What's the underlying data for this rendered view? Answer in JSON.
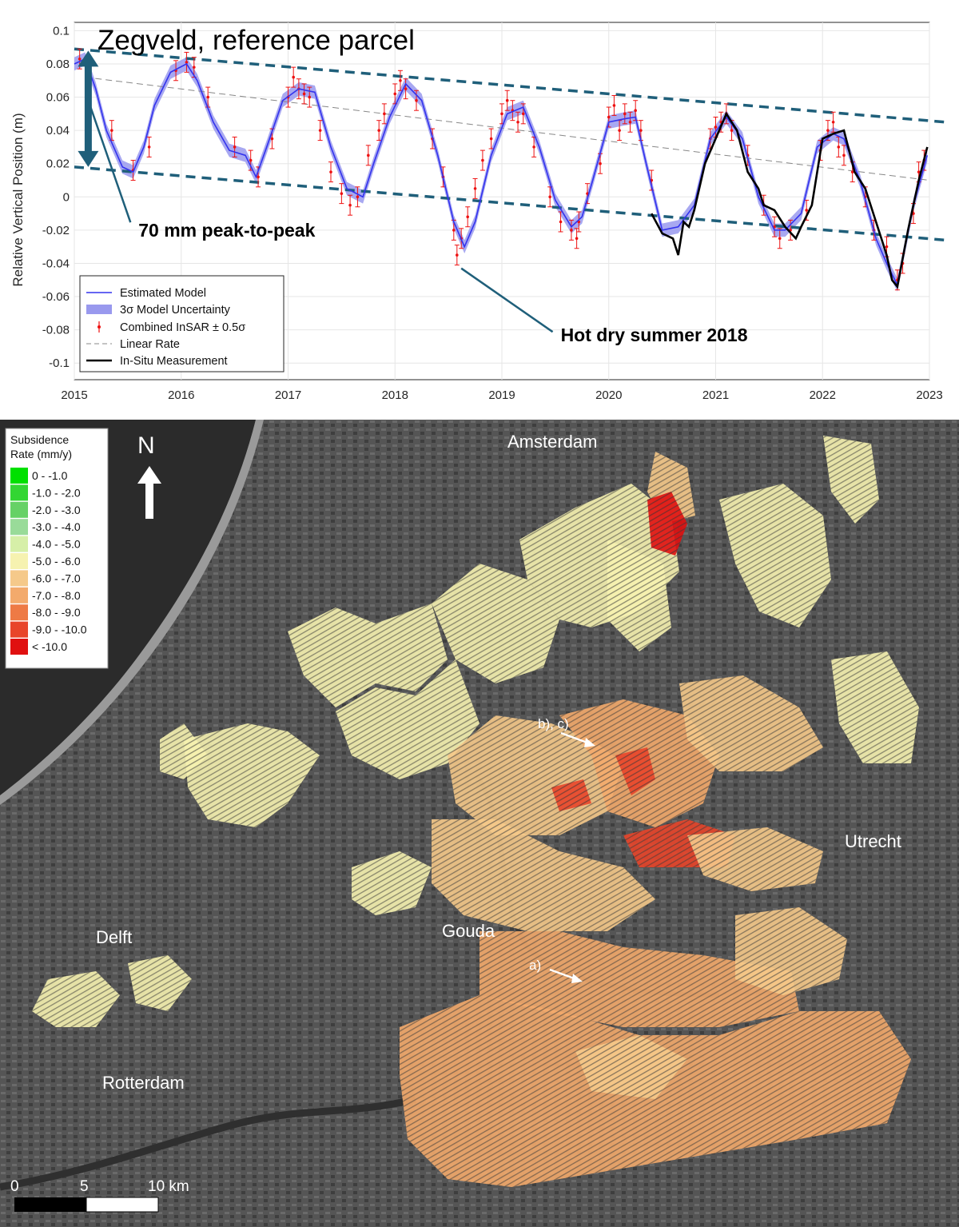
{
  "chart_data": {
    "type": "line",
    "title": "Zegveld, reference parcel",
    "ylabel": "Relative Vertical Position (m)",
    "xlabel": "",
    "xlim": [
      2015,
      2023
    ],
    "ylim": [
      -0.11,
      0.105
    ],
    "x_ticks": [
      "2015",
      "2016",
      "2017",
      "2018",
      "2019",
      "2020",
      "2021",
      "2022",
      "2023"
    ],
    "y_ticks": [
      "0.1",
      "0.08",
      "0.06",
      "0.04",
      "0.02",
      "0",
      "-0.02",
      "-0.04",
      "-0.06",
      "-0.08",
      "-0.1"
    ],
    "grid": true,
    "legend_position": "bottom-left",
    "series": [
      {
        "name": "Estimated Model",
        "color": "#3333ee",
        "x": [
          2015.0,
          2015.1,
          2015.2,
          2015.3,
          2015.45,
          2015.55,
          2015.65,
          2015.75,
          2015.9,
          2016.05,
          2016.15,
          2016.3,
          2016.45,
          2016.6,
          2016.7,
          2016.8,
          2016.95,
          2017.1,
          2017.25,
          2017.4,
          2017.55,
          2017.7,
          2017.8,
          2017.95,
          2018.1,
          2018.25,
          2018.4,
          2018.55,
          2018.65,
          2018.75,
          2018.9,
          2019.05,
          2019.2,
          2019.35,
          2019.5,
          2019.65,
          2019.75,
          2019.85,
          2020.0,
          2020.15,
          2020.25,
          2020.35,
          2020.5,
          2020.65,
          2020.8,
          2020.95,
          2021.1,
          2021.25,
          2021.4,
          2021.55,
          2021.65,
          2021.8,
          2021.95,
          2022.1,
          2022.2,
          2022.35,
          2022.5,
          2022.6,
          2022.7,
          2022.85,
          2022.98
        ],
        "y": [
          0.08,
          0.083,
          0.065,
          0.04,
          0.018,
          0.015,
          0.03,
          0.055,
          0.075,
          0.08,
          0.07,
          0.045,
          0.028,
          0.025,
          0.012,
          0.03,
          0.058,
          0.065,
          0.063,
          0.03,
          0.005,
          0.0,
          0.02,
          0.048,
          0.068,
          0.058,
          0.025,
          -0.015,
          -0.03,
          -0.015,
          0.025,
          0.05,
          0.054,
          0.03,
          -0.002,
          -0.018,
          -0.012,
          0.01,
          0.045,
          0.047,
          0.048,
          0.02,
          -0.02,
          -0.018,
          -0.005,
          0.035,
          0.048,
          0.035,
          0.0,
          -0.02,
          -0.02,
          -0.01,
          0.03,
          0.038,
          0.035,
          0.01,
          -0.025,
          -0.04,
          -0.053,
          -0.005,
          0.025
        ],
        "uncertainty_label": "3σ Model Uncertainty",
        "uncertainty_color": "#9999ee"
      },
      {
        "name": "Combined InSAR ± 0.5σ",
        "color": "#ee1111",
        "error": 0.006,
        "x": [
          2015.05,
          2015.35,
          2015.55,
          2015.7,
          2015.95,
          2016.05,
          2016.12,
          2016.25,
          2016.5,
          2016.65,
          2016.72,
          2016.85,
          2017.0,
          2017.05,
          2017.1,
          2017.15,
          2017.2,
          2017.3,
          2017.4,
          2017.5,
          2017.58,
          2017.65,
          2017.75,
          2017.85,
          2017.9,
          2018.0,
          2018.05,
          2018.1,
          2018.2,
          2018.35,
          2018.45,
          2018.55,
          2018.58,
          2018.62,
          2018.68,
          2018.75,
          2018.82,
          2018.9,
          2019.0,
          2019.05,
          2019.1,
          2019.15,
          2019.2,
          2019.3,
          2019.45,
          2019.55,
          2019.65,
          2019.7,
          2019.72,
          2019.8,
          2019.92,
          2020.0,
          2020.05,
          2020.1,
          2020.15,
          2020.2,
          2020.25,
          2020.3,
          2020.4,
          2020.95,
          2021.0,
          2021.05,
          2021.1,
          2021.15,
          2021.3,
          2021.45,
          2021.55,
          2021.6,
          2021.7,
          2021.85,
          2021.98,
          2022.05,
          2022.1,
          2022.15,
          2022.2,
          2022.28,
          2022.4,
          2022.48,
          2022.6,
          2022.7,
          2022.75,
          2022.85,
          2022.9,
          2022.95
        ],
        "y": [
          0.083,
          0.04,
          0.016,
          0.03,
          0.076,
          0.081,
          0.078,
          0.06,
          0.03,
          0.022,
          0.012,
          0.035,
          0.06,
          0.072,
          0.065,
          0.062,
          0.06,
          0.04,
          0.015,
          0.002,
          -0.005,
          0.0,
          0.025,
          0.04,
          0.05,
          0.062,
          0.07,
          0.065,
          0.058,
          0.035,
          0.012,
          -0.02,
          -0.035,
          -0.025,
          -0.012,
          0.005,
          0.022,
          0.035,
          0.05,
          0.058,
          0.052,
          0.045,
          0.05,
          0.03,
          0.0,
          -0.015,
          -0.02,
          -0.025,
          -0.015,
          0.002,
          0.02,
          0.048,
          0.055,
          0.04,
          0.05,
          0.045,
          0.052,
          0.04,
          0.01,
          0.035,
          0.042,
          0.045,
          0.05,
          0.04,
          0.025,
          -0.005,
          -0.018,
          -0.025,
          -0.02,
          -0.008,
          0.028,
          0.04,
          0.045,
          0.03,
          0.025,
          0.015,
          0.0,
          -0.02,
          -0.03,
          -0.05,
          -0.04,
          -0.01,
          0.015,
          0.022
        ]
      },
      {
        "name": "Linear Rate",
        "color": "#888888",
        "x": [
          2015.1,
          2023.0
        ],
        "y": [
          0.072,
          0.01
        ]
      },
      {
        "name": "In-Situ Measurement",
        "color": "#000000",
        "x": [
          2020.4,
          2020.5,
          2020.6,
          2020.65,
          2020.7,
          2020.75,
          2020.8,
          2020.9,
          2021.0,
          2021.1,
          2021.2,
          2021.3,
          2021.4,
          2021.45,
          2021.55,
          2021.65,
          2021.75,
          2021.8,
          2021.9,
          2022.0,
          2022.1,
          2022.2,
          2022.3,
          2022.4,
          2022.5,
          2022.55,
          2022.6,
          2022.65,
          2022.7,
          2022.8,
          2022.9,
          2022.98
        ],
        "y": [
          -0.01,
          -0.022,
          -0.025,
          -0.035,
          -0.015,
          -0.018,
          -0.008,
          0.02,
          0.035,
          0.05,
          0.04,
          0.015,
          0.005,
          -0.005,
          -0.008,
          -0.018,
          -0.025,
          -0.018,
          -0.005,
          0.035,
          0.038,
          0.04,
          0.015,
          0.005,
          -0.015,
          -0.025,
          -0.035,
          -0.05,
          -0.054,
          -0.02,
          0.01,
          0.03
        ]
      }
    ],
    "envelope_lines": [
      {
        "color": "#1f5f7a",
        "x": [
          2015.0,
          2023.15
        ],
        "y": [
          0.089,
          0.045
        ]
      },
      {
        "color": "#1f5f7a",
        "x": [
          2015.0,
          2023.15
        ],
        "y": [
          0.018,
          -0.026
        ]
      }
    ],
    "annotations": [
      {
        "text": "70 mm peak-to-peak",
        "x": 2015.6,
        "y": -0.024,
        "points_to": [
          2015.12,
          0.06
        ]
      },
      {
        "text": "Hot dry summer 2018",
        "x": 2019.55,
        "y": -0.087,
        "points_to": [
          2018.62,
          -0.043
        ]
      }
    ],
    "arrow_span": {
      "x": 2015.13,
      "y_top": 0.088,
      "y_bottom": 0.018,
      "color": "#1f5f7a"
    }
  },
  "map": {
    "legend_title_line1": "Subsidence",
    "legend_title_line2": "Rate (mm/y)",
    "legend_items": [
      {
        "label": "0 - -1.0",
        "color": "#00e000"
      },
      {
        "label": "-1.0 - -2.0",
        "color": "#33d633"
      },
      {
        "label": "-2.0 - -3.0",
        "color": "#66d166"
      },
      {
        "label": "-3.0 - -4.0",
        "color": "#99db99"
      },
      {
        "label": "-4.0 - -5.0",
        "color": "#d6efa8"
      },
      {
        "label": "-5.0 - -6.0",
        "color": "#f6f2b0"
      },
      {
        "label": "-6.0 - -7.0",
        "color": "#f5c98a"
      },
      {
        "label": "-7.0 - -8.0",
        "color": "#f3aa6c"
      },
      {
        "label": "-8.0 - -9.0",
        "color": "#ee7a45"
      },
      {
        "label": "-9.0 - -10.0",
        "color": "#e8452a"
      },
      {
        "label": "< -10.0",
        "color": "#e01010"
      }
    ],
    "north_label": "N",
    "cities": [
      {
        "name": "Amsterdam"
      },
      {
        "name": "Utrecht"
      },
      {
        "name": "Gouda"
      },
      {
        "name": "Delft"
      },
      {
        "name": "Rotterdam"
      }
    ],
    "markers": [
      {
        "label": "b), c)"
      },
      {
        "label": "a)"
      }
    ],
    "scale_labels": [
      "0",
      "5",
      "10 km"
    ]
  }
}
